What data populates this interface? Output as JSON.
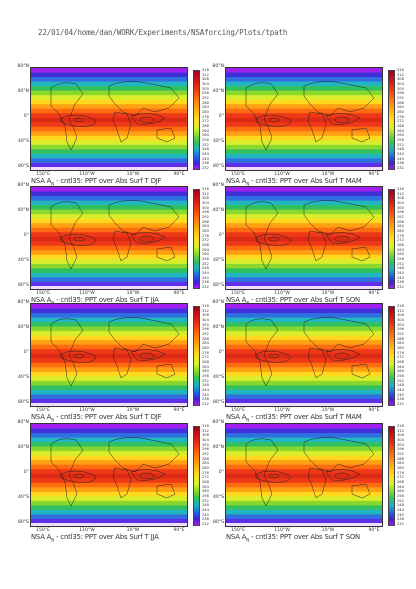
{
  "header": "22/01/04/home/dan/WORK/Experiments/NSAforcing/Plots/tpath",
  "lat_labels": [
    "80°N",
    "40°N",
    "0°",
    "40°S",
    "80°S"
  ],
  "lon_labels": [
    "150°E",
    "110°W",
    "10°W",
    "90°E"
  ],
  "colorbar_ticks": [
    "316",
    "312",
    "308",
    "304",
    "300",
    "296",
    "292",
    "288",
    "284",
    "280",
    "276",
    "272",
    "268",
    "264",
    "260",
    "256",
    "252",
    "248",
    "244",
    "240",
    "236",
    "232"
  ],
  "panels": [
    {
      "caption_prefix": "NSA A",
      "caption_sub": "N",
      "caption_rest": " - cntl35: PPT over Abs Surf T  DJF"
    },
    {
      "caption_prefix": "NSA A",
      "caption_sub": "N",
      "caption_rest": " - cntl35: PPT over Abs Surf T  MAM"
    },
    {
      "caption_prefix": "NSA A",
      "caption_sub": "N",
      "caption_rest": " - cntl35: PPT over Abs Surf T  JJA"
    },
    {
      "caption_prefix": "NSA A",
      "caption_sub": "N",
      "caption_rest": " - cntl35: PPT over Abs Surf T  SON"
    },
    {
      "caption_prefix": "NSA A",
      "caption_sub": "N",
      "caption_rest": " - cntl35: PPT over Abs Surf T  DJF"
    },
    {
      "caption_prefix": "NSA A",
      "caption_sub": "N",
      "caption_rest": " - cntl35: PPT over Abs Surf T  MAM"
    },
    {
      "caption_prefix": "NSA A",
      "caption_sub": "N",
      "caption_rest": " - cntl35: PPT over Abs Surf T  JJA"
    },
    {
      "caption_prefix": "NSA A",
      "caption_sub": "N",
      "caption_rest": " - cntl35: PPT over Abs Surf T  SON"
    }
  ]
}
